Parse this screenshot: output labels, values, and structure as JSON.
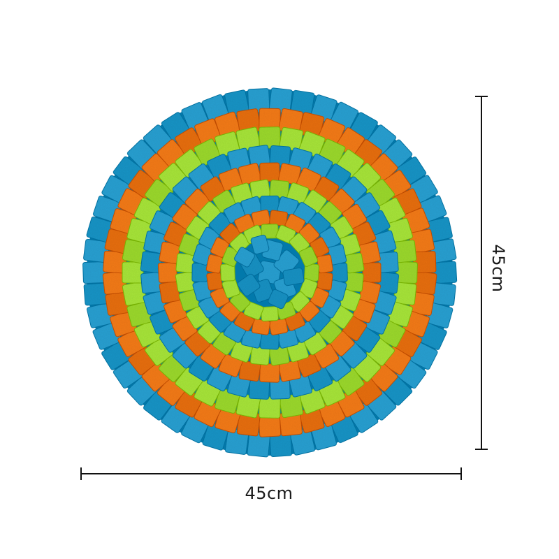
{
  "product": {
    "name_icon": "snuffle-mat-icon",
    "ring_colors": [
      "#2aa1d3",
      "#f57c1f",
      "#a8e63a",
      "#2aa1d3",
      "#f57c1f",
      "#a8e63a",
      "#2aa1d3",
      "#f57c1f",
      "#a8e63a",
      "#2aa1d3"
    ],
    "center_color": "#2aa1d3"
  },
  "dimensions": {
    "width_label": "45cm",
    "height_label": "45cm",
    "line_color": "#111111"
  }
}
